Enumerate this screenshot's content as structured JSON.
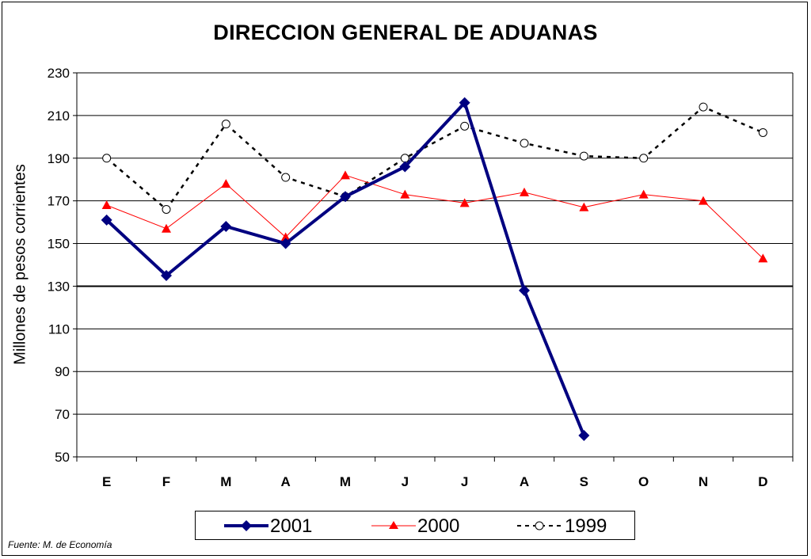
{
  "chart_data": {
    "type": "line",
    "title": "DIRECCION GENERAL DE ADUANAS",
    "ylabel": "Millones de pesos corrientes",
    "xlabel": "",
    "categories": [
      "E",
      "F",
      "M",
      "A",
      "M",
      "J",
      "J",
      "A",
      "S",
      "O",
      "N",
      "D"
    ],
    "ylim": [
      50,
      230
    ],
    "yticks": [
      50,
      70,
      90,
      110,
      130,
      150,
      170,
      190,
      210,
      230
    ],
    "grid": "horizontal",
    "legend_position": "bottom",
    "series": [
      {
        "name": "2001",
        "color": "#000080",
        "marker": "diamond",
        "style": "solid-thick",
        "values": [
          161,
          135,
          158,
          150,
          172,
          186,
          216,
          128,
          60,
          null,
          null,
          null
        ]
      },
      {
        "name": "2000",
        "color": "#ff0000",
        "marker": "triangle",
        "style": "solid-thin",
        "values": [
          168,
          157,
          178,
          153,
          182,
          173,
          169,
          174,
          167,
          173,
          170,
          143
        ]
      },
      {
        "name": "1999",
        "color": "#000000",
        "marker": "circle-open",
        "style": "dashed",
        "values": [
          190,
          166,
          206,
          181,
          172,
          190,
          205,
          197,
          191,
          190,
          214,
          202
        ]
      }
    ]
  },
  "legend": {
    "items": [
      "2001",
      "2000",
      "1999"
    ]
  },
  "footnote": "Fuente: M. de Economía"
}
